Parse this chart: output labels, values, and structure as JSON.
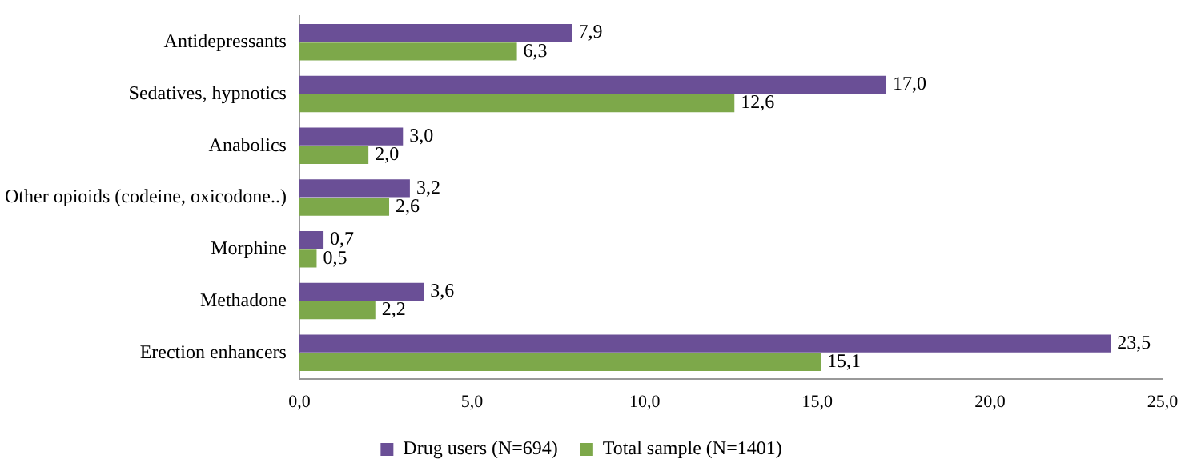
{
  "chart_data": {
    "type": "bar",
    "orientation": "horizontal",
    "categories": [
      "Antidepressants",
      "Sedatives, hypnotics",
      "Anabolics",
      "Other opioids (codeine, oxicodone..)",
      "Morphine",
      "Methadone",
      "Erection enhancers"
    ],
    "series": [
      {
        "name": "Drug users (N=694)",
        "color": "#6a4f96",
        "values": [
          7.9,
          17.0,
          3.0,
          3.2,
          0.7,
          3.6,
          23.5
        ],
        "value_labels": [
          "7,9",
          "17,0",
          "3,0",
          "3,2",
          "0,7",
          "3,6",
          "23,5"
        ]
      },
      {
        "name": "Total sample (N=1401)",
        "color": "#7da84a",
        "values": [
          6.3,
          12.6,
          2.0,
          2.6,
          0.5,
          2.2,
          15.1
        ],
        "value_labels": [
          "6,3",
          "12,6",
          "2,0",
          "2,6",
          "0,5",
          "2,2",
          "15,1"
        ]
      }
    ],
    "xlim": [
      0,
      25
    ],
    "xticks": [
      {
        "value": 0,
        "label": "0,0"
      },
      {
        "value": 5,
        "label": "5,0"
      },
      {
        "value": 10,
        "label": "10,0"
      },
      {
        "value": 15,
        "label": "15,0"
      },
      {
        "value": 20,
        "label": "20,0"
      },
      {
        "value": 25,
        "label": "25,0"
      }
    ],
    "grid": false,
    "legend": "bottom"
  }
}
